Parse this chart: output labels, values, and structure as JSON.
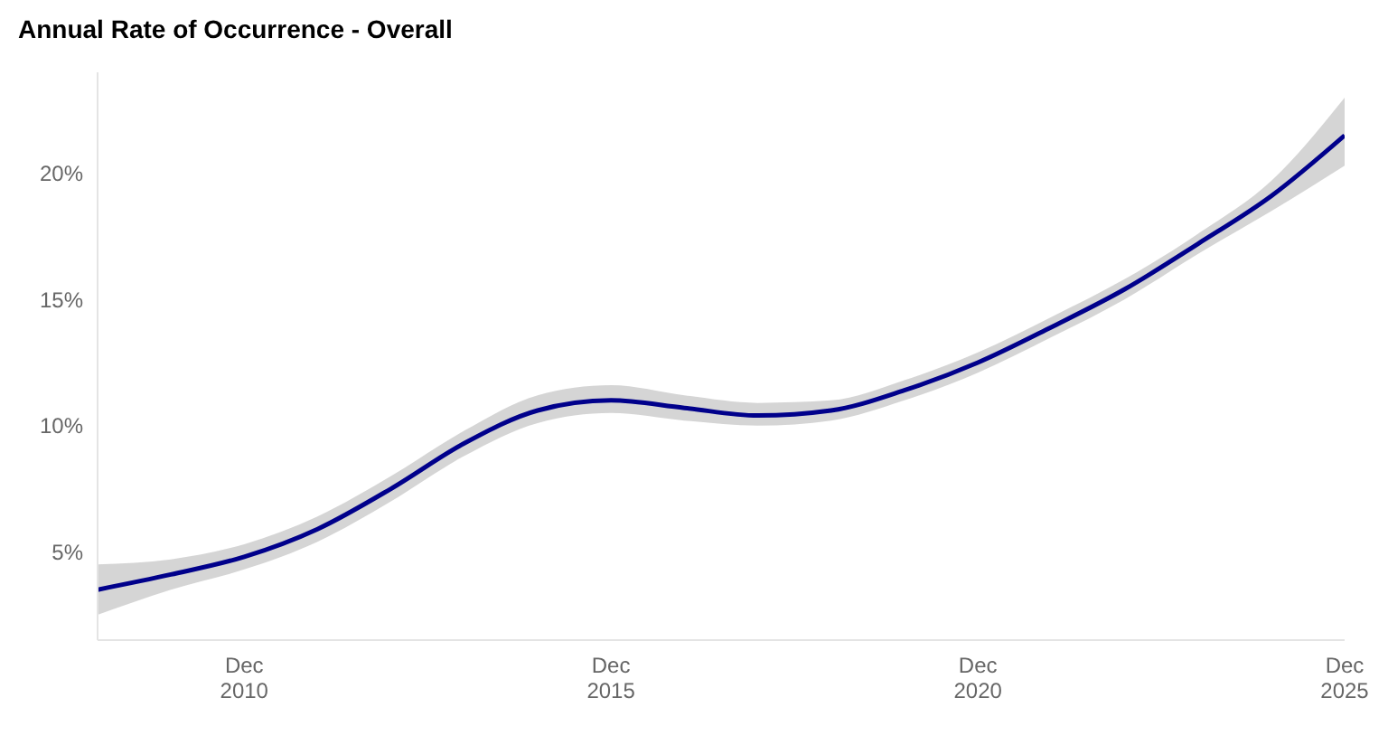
{
  "chart_data": {
    "type": "line",
    "title": "Annual Rate of Occurrence - Overall",
    "x": [
      "2008-12",
      "2009-12",
      "2010-12",
      "2011-12",
      "2012-12",
      "2013-12",
      "2014-12",
      "2015-12",
      "2016-12",
      "2017-12",
      "2018-12",
      "2019-12",
      "2020-12",
      "2021-12",
      "2022-12",
      "2023-12",
      "2024-12",
      "2025-12"
    ],
    "series": [
      {
        "color": "#00008b",
        "values": [
          3.5,
          4.1,
          4.8,
          5.9,
          7.5,
          9.3,
          10.6,
          11.0,
          10.7,
          10.4,
          10.6,
          11.4,
          12.5,
          13.9,
          15.4,
          17.2,
          19.1,
          21.5
        ],
        "lower": [
          2.5,
          3.5,
          4.3,
          5.4,
          7.0,
          8.8,
          10.1,
          10.5,
          10.2,
          10.0,
          10.2,
          11.0,
          12.1,
          13.5,
          15.0,
          16.8,
          18.5,
          20.3
        ],
        "upper": [
          4.5,
          4.7,
          5.3,
          6.4,
          8.0,
          9.8,
          11.2,
          11.6,
          11.2,
          10.9,
          11.0,
          11.8,
          12.9,
          14.3,
          15.8,
          17.6,
          19.7,
          23.0
        ]
      }
    ],
    "xticks": [
      {
        "value": "2010-12",
        "label": "Dec\n2010"
      },
      {
        "value": "2015-12",
        "label": "Dec\n2015"
      },
      {
        "value": "2020-12",
        "label": "Dec\n2020"
      },
      {
        "value": "2025-12",
        "label": "Dec\n2025"
      }
    ],
    "xlim": [
      "2008-12",
      "2025-12"
    ],
    "ylim": [
      1.5,
      24
    ],
    "yticks": [
      {
        "value": 5,
        "label": "5%"
      },
      {
        "value": 10,
        "label": "10%"
      },
      {
        "value": 15,
        "label": "15%"
      },
      {
        "value": 20,
        "label": "20%"
      }
    ],
    "grid": false,
    "legend": false,
    "marker": "none",
    "line_style": "solid"
  }
}
